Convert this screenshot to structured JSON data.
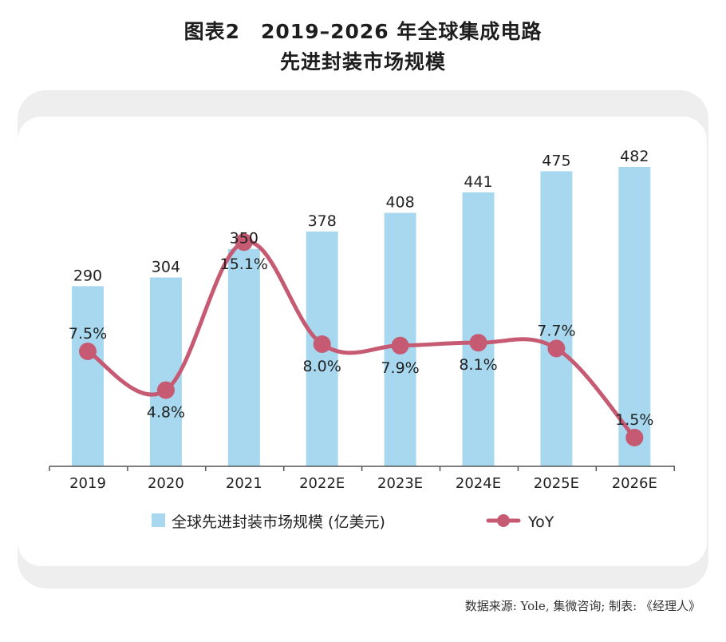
{
  "header": {
    "title_line1": "图表2　2019–2026 年全球集成电路",
    "title_line2": "先进封装市场规模"
  },
  "source_note": "数据来源: Yole, 集微咨询; 制表: 《经理人》",
  "colors": {
    "bar": "#a7d8ef",
    "line": "#c65a73",
    "axis": "#555555",
    "text": "#222222"
  },
  "chart_data": {
    "type": "bar",
    "categories": [
      "2019",
      "2020",
      "2021",
      "2022E",
      "2023E",
      "2024E",
      "2025E",
      "2026E"
    ],
    "series": [
      {
        "name": "全球先进封装市场规模 (亿美元)",
        "type": "bar",
        "values": [
          290,
          304,
          350,
          378,
          408,
          441,
          475,
          482
        ],
        "labels": [
          "290",
          "304",
          "350",
          "378",
          "408",
          "441",
          "475",
          "482"
        ]
      },
      {
        "name": "YoY",
        "type": "line",
        "values": [
          7.5,
          4.8,
          15.1,
          8.0,
          7.9,
          8.1,
          7.7,
          1.5
        ],
        "labels": [
          "7.5%",
          "4.8%",
          "15.1%",
          "8.0%",
          "7.9%",
          "8.1%",
          "7.7%",
          "1.5%"
        ]
      }
    ],
    "ylim": [
      0,
      520
    ],
    "y2lim": [
      0,
      17.5
    ],
    "grid": false,
    "legend": "bottom"
  }
}
